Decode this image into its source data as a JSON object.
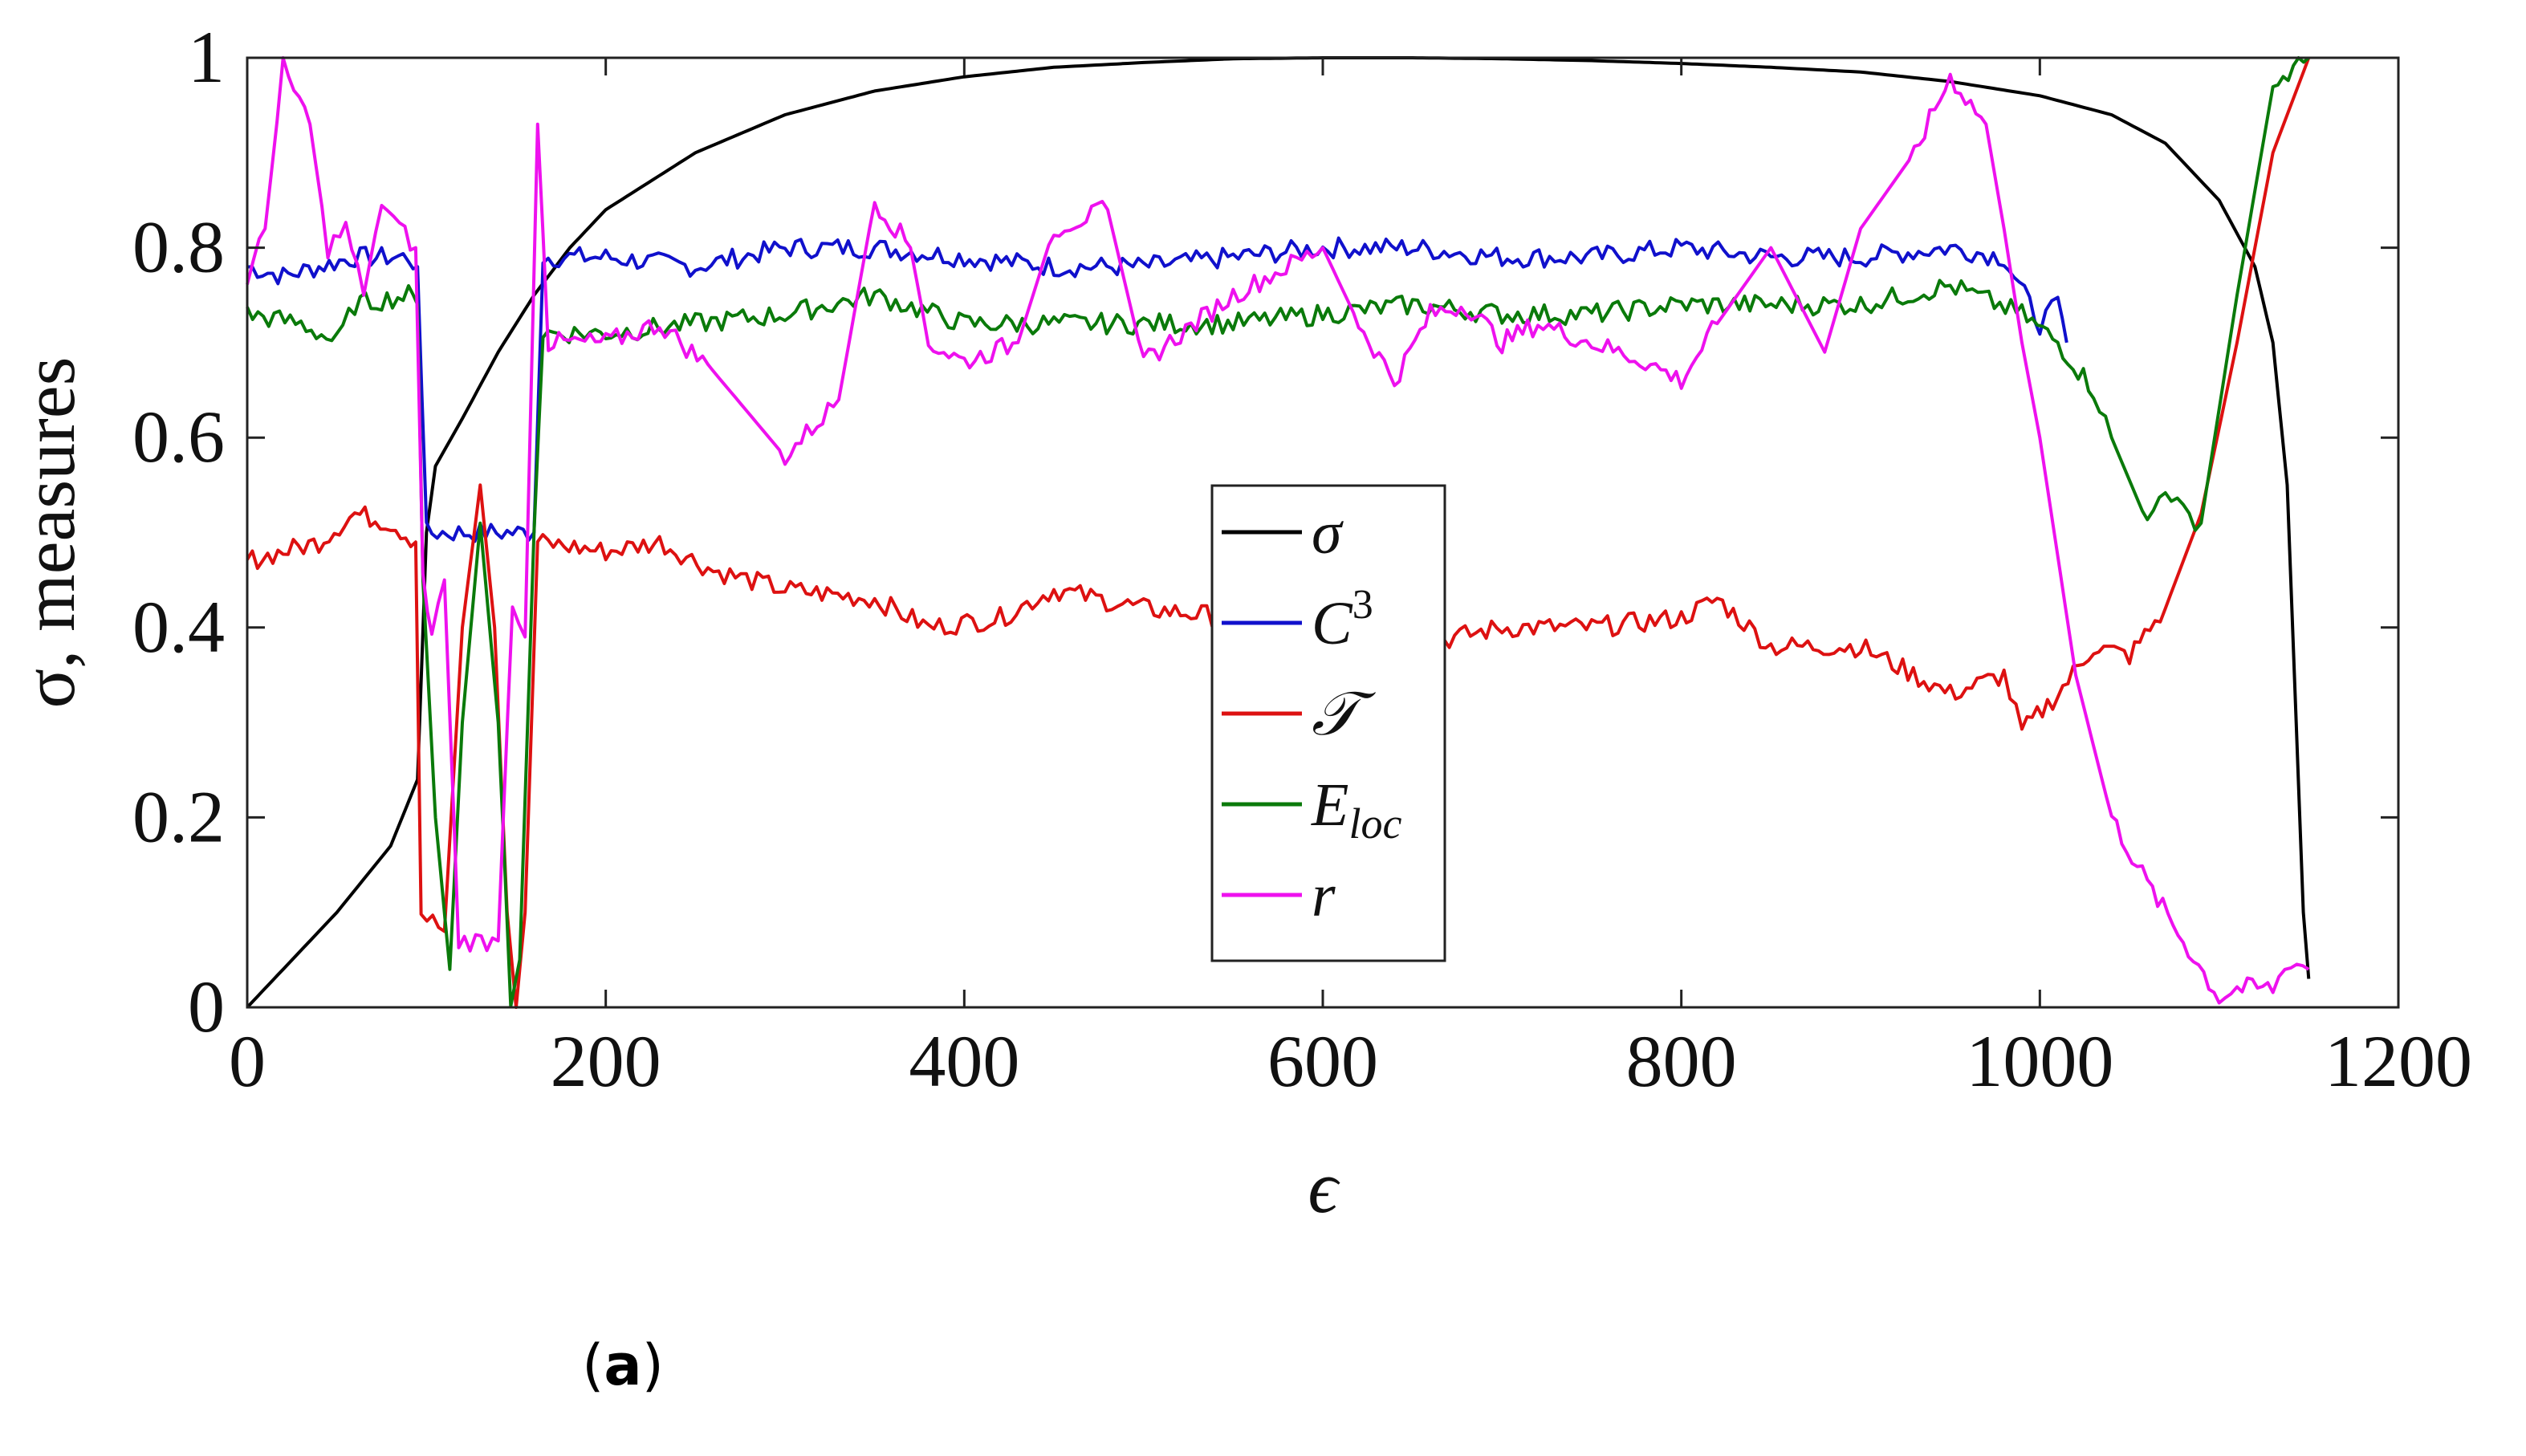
{
  "chart_data": {
    "type": "line",
    "title": "",
    "xlabel": "ϵ",
    "ylabel": "σ, measures",
    "xlim": [
      0,
      1200
    ],
    "ylim": [
      0,
      1
    ],
    "xticks": [
      0,
      200,
      400,
      600,
      800,
      1000,
      1200
    ],
    "yticks": [
      0,
      0.2,
      0.4,
      0.6,
      0.8,
      1
    ],
    "xtick_labels": [
      "0",
      "200",
      "400",
      "600",
      "800",
      "1000",
      "1200"
    ],
    "ytick_labels": [
      "0",
      "0.2",
      "0.4",
      "0.6",
      "0.8",
      "1"
    ],
    "legend_position": "center",
    "grid": false,
    "series": [
      {
        "name": "σ",
        "legend_main": "σ",
        "legend_sub": "",
        "legend_sup": "",
        "color": "#000000",
        "points": [
          [
            0,
            0
          ],
          [
            20,
            0.04
          ],
          [
            50,
            0.1
          ],
          [
            80,
            0.17
          ],
          [
            95,
            0.24
          ],
          [
            100,
            0.5
          ],
          [
            105,
            0.57
          ],
          [
            120,
            0.62
          ],
          [
            140,
            0.69
          ],
          [
            160,
            0.75
          ],
          [
            180,
            0.8
          ],
          [
            200,
            0.84
          ],
          [
            250,
            0.9
          ],
          [
            300,
            0.94
          ],
          [
            350,
            0.965
          ],
          [
            400,
            0.98
          ],
          [
            450,
            0.99
          ],
          [
            500,
            0.995
          ],
          [
            550,
            0.999
          ],
          [
            600,
            1.0
          ],
          [
            650,
            1.0
          ],
          [
            700,
            0.999
          ],
          [
            750,
            0.997
          ],
          [
            800,
            0.994
          ],
          [
            850,
            0.99
          ],
          [
            900,
            0.985
          ],
          [
            950,
            0.975
          ],
          [
            1000,
            0.96
          ],
          [
            1040,
            0.94
          ],
          [
            1070,
            0.91
          ],
          [
            1100,
            0.85
          ],
          [
            1120,
            0.78
          ],
          [
            1130,
            0.7
          ],
          [
            1138,
            0.55
          ],
          [
            1143,
            0.3
          ],
          [
            1147,
            0.1
          ],
          [
            1150,
            0.03
          ]
        ]
      },
      {
        "name": "C3",
        "legend_main": "C",
        "legend_sub": "",
        "legend_sup": "3",
        "color": "#1010cc",
        "points": [
          [
            0,
            0.78
          ],
          [
            20,
            0.77
          ],
          [
            40,
            0.78
          ],
          [
            60,
            0.79
          ],
          [
            90,
            0.79
          ],
          [
            95,
            0.78
          ],
          [
            100,
            0.5
          ],
          [
            160,
            0.5
          ],
          [
            165,
            0.79
          ],
          [
            200,
            0.79
          ],
          [
            250,
            0.78
          ],
          [
            300,
            0.8
          ],
          [
            350,
            0.8
          ],
          [
            400,
            0.79
          ],
          [
            450,
            0.78
          ],
          [
            500,
            0.78
          ],
          [
            550,
            0.79
          ],
          [
            600,
            0.8
          ],
          [
            650,
            0.8
          ],
          [
            700,
            0.79
          ],
          [
            750,
            0.79
          ],
          [
            800,
            0.8
          ],
          [
            850,
            0.79
          ],
          [
            900,
            0.79
          ],
          [
            950,
            0.8
          ],
          [
            980,
            0.79
          ],
          [
            1000,
            0.72
          ],
          [
            1010,
            0.74
          ],
          [
            1015,
            0.7
          ]
        ]
      },
      {
        "name": "T",
        "legend_main": "𝒯",
        "legend_sub": "",
        "legend_sup": "",
        "color": "#dd1111",
        "points": [
          [
            0,
            0.47
          ],
          [
            20,
            0.48
          ],
          [
            40,
            0.49
          ],
          [
            60,
            0.52
          ],
          [
            80,
            0.51
          ],
          [
            94,
            0.49
          ],
          [
            97,
            0.1
          ],
          [
            110,
            0.08
          ],
          [
            120,
            0.4
          ],
          [
            130,
            0.55
          ],
          [
            138,
            0.4
          ],
          [
            145,
            0.1
          ],
          [
            150,
            0.0
          ],
          [
            155,
            0.1
          ],
          [
            162,
            0.49
          ],
          [
            200,
            0.48
          ],
          [
            230,
            0.49
          ],
          [
            260,
            0.46
          ],
          [
            300,
            0.44
          ],
          [
            350,
            0.43
          ],
          [
            380,
            0.4
          ],
          [
            420,
            0.41
          ],
          [
            450,
            0.44
          ],
          [
            500,
            0.42
          ],
          [
            550,
            0.41
          ],
          [
            600,
            0.39
          ],
          [
            650,
            0.38
          ],
          [
            700,
            0.4
          ],
          [
            750,
            0.4
          ],
          [
            800,
            0.41
          ],
          [
            820,
            0.43
          ],
          [
            850,
            0.38
          ],
          [
            900,
            0.38
          ],
          [
            950,
            0.33
          ],
          [
            980,
            0.35
          ],
          [
            990,
            0.29
          ],
          [
            1010,
            0.33
          ],
          [
            1030,
            0.38
          ],
          [
            1050,
            0.37
          ],
          [
            1070,
            0.42
          ],
          [
            1090,
            0.52
          ],
          [
            1110,
            0.7
          ],
          [
            1130,
            0.9
          ],
          [
            1150,
            1.0
          ]
        ]
      },
      {
        "name": "E_loc",
        "legend_main": "E",
        "legend_sub": "loc",
        "legend_sup": "",
        "color": "#0a7a0a",
        "points": [
          [
            0,
            0.73
          ],
          [
            30,
            0.72
          ],
          [
            50,
            0.7
          ],
          [
            60,
            0.74
          ],
          [
            90,
            0.75
          ],
          [
            95,
            0.74
          ],
          [
            98,
            0.45
          ],
          [
            105,
            0.2
          ],
          [
            113,
            0.04
          ],
          [
            120,
            0.3
          ],
          [
            130,
            0.51
          ],
          [
            140,
            0.3
          ],
          [
            147,
            0.01
          ],
          [
            152,
            0.05
          ],
          [
            160,
            0.5
          ],
          [
            165,
            0.71
          ],
          [
            200,
            0.71
          ],
          [
            250,
            0.72
          ],
          [
            300,
            0.73
          ],
          [
            350,
            0.75
          ],
          [
            400,
            0.72
          ],
          [
            450,
            0.72
          ],
          [
            500,
            0.72
          ],
          [
            550,
            0.72
          ],
          [
            600,
            0.73
          ],
          [
            650,
            0.74
          ],
          [
            700,
            0.73
          ],
          [
            750,
            0.73
          ],
          [
            800,
            0.74
          ],
          [
            850,
            0.74
          ],
          [
            900,
            0.74
          ],
          [
            950,
            0.76
          ],
          [
            990,
            0.73
          ],
          [
            1010,
            0.7
          ],
          [
            1030,
            0.65
          ],
          [
            1040,
            0.6
          ],
          [
            1060,
            0.51
          ],
          [
            1070,
            0.55
          ],
          [
            1080,
            0.52
          ],
          [
            1090,
            0.51
          ],
          [
            1110,
            0.75
          ],
          [
            1130,
            0.97
          ],
          [
            1150,
            1.0
          ]
        ]
      },
      {
        "name": "r",
        "legend_main": "r",
        "legend_sub": "",
        "legend_sup": "",
        "color": "#ee11ee",
        "points": [
          [
            0,
            0.77
          ],
          [
            10,
            0.82
          ],
          [
            20,
            0.99
          ],
          [
            35,
            0.93
          ],
          [
            45,
            0.8
          ],
          [
            55,
            0.82
          ],
          [
            65,
            0.75
          ],
          [
            75,
            0.85
          ],
          [
            85,
            0.82
          ],
          [
            94,
            0.8
          ],
          [
            98,
            0.45
          ],
          [
            103,
            0.39
          ],
          [
            110,
            0.45
          ],
          [
            118,
            0.07
          ],
          [
            140,
            0.07
          ],
          [
            148,
            0.43
          ],
          [
            155,
            0.39
          ],
          [
            162,
            0.93
          ],
          [
            168,
            0.7
          ],
          [
            200,
            0.7
          ],
          [
            230,
            0.72
          ],
          [
            260,
            0.67
          ],
          [
            300,
            0.58
          ],
          [
            330,
            0.64
          ],
          [
            350,
            0.85
          ],
          [
            370,
            0.8
          ],
          [
            380,
            0.7
          ],
          [
            400,
            0.68
          ],
          [
            430,
            0.7
          ],
          [
            450,
            0.82
          ],
          [
            480,
            0.84
          ],
          [
            500,
            0.68
          ],
          [
            550,
            0.75
          ],
          [
            600,
            0.8
          ],
          [
            620,
            0.72
          ],
          [
            640,
            0.66
          ],
          [
            660,
            0.73
          ],
          [
            680,
            0.74
          ],
          [
            700,
            0.7
          ],
          [
            720,
            0.72
          ],
          [
            750,
            0.7
          ],
          [
            780,
            0.68
          ],
          [
            800,
            0.66
          ],
          [
            820,
            0.72
          ],
          [
            850,
            0.8
          ],
          [
            880,
            0.69
          ],
          [
            900,
            0.82
          ],
          [
            930,
            0.9
          ],
          [
            950,
            0.98
          ],
          [
            970,
            0.93
          ],
          [
            980,
            0.82
          ],
          [
            990,
            0.7
          ],
          [
            1000,
            0.6
          ],
          [
            1020,
            0.35
          ],
          [
            1040,
            0.2
          ],
          [
            1060,
            0.13
          ],
          [
            1080,
            0.07
          ],
          [
            1100,
            0.01
          ],
          [
            1110,
            0.02
          ],
          [
            1130,
            0.02
          ],
          [
            1140,
            0.05
          ],
          [
            1150,
            0.04
          ]
        ]
      }
    ]
  },
  "caption": {
    "label": "a",
    "open": "(",
    "close": ")"
  }
}
